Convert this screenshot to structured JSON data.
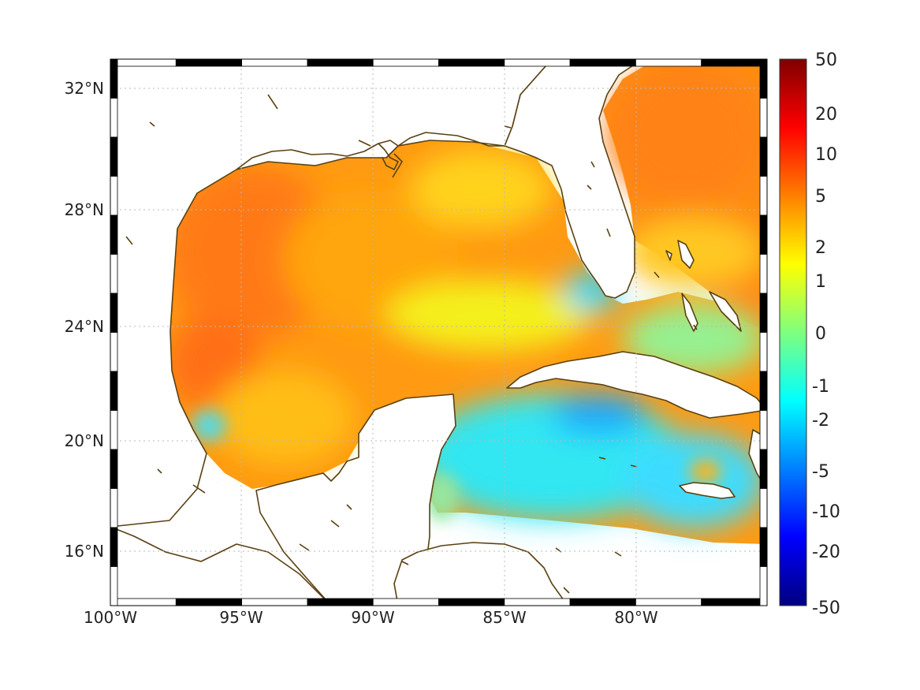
{
  "map": {
    "extent": {
      "lon_min": -100,
      "lon_max": -75,
      "lat_min": 14,
      "lat_max": 33
    },
    "grid": true,
    "x_ticks": [
      {
        "lon": -100,
        "label": "100°W"
      },
      {
        "lon": -95,
        "label": "95°W"
      },
      {
        "lon": -90,
        "label": "90°W"
      },
      {
        "lon": -85,
        "label": "85°W"
      },
      {
        "lon": -80,
        "label": "80°W"
      }
    ],
    "y_ticks": [
      {
        "lat": 32,
        "label": "32°N"
      },
      {
        "lat": 28,
        "label": "28°N"
      },
      {
        "lat": 24,
        "label": "24°N"
      },
      {
        "lat": 20,
        "label": "20°N"
      },
      {
        "lat": 16,
        "label": "16°N"
      }
    ],
    "land_color": "#ffffff",
    "coastline_color": "#5a4010",
    "frame_colors": [
      "#000000",
      "#ffffff"
    ]
  },
  "colorbar": {
    "ticks": [
      "50",
      "20",
      "10",
      "5",
      "2",
      "1",
      "0",
      "-1",
      "-2",
      "-5",
      "-10",
      "-20",
      "-50"
    ],
    "colormap": "jet",
    "stops": [
      "#00007f",
      "#0000ff",
      "#007fff",
      "#00ffff",
      "#7fff7f",
      "#ffff00",
      "#ff7f00",
      "#ff0000",
      "#7f0000"
    ]
  },
  "field_regions": [
    {
      "region": "western-gulf",
      "value": 5,
      "color": "#ff7a14"
    },
    {
      "region": "central-gulf",
      "value": 3,
      "color": "#ffa50a"
    },
    {
      "region": "eastern-gulf-shelf",
      "value": 1.5,
      "color": "#ffd21e"
    },
    {
      "region": "loop-current",
      "value": 1,
      "color": "#f4f01e"
    },
    {
      "region": "campeche-bay",
      "value": 2,
      "color": "#ffbe14"
    },
    {
      "region": "caribbean-sea",
      "value": -1.5,
      "color": "#33e6f2"
    },
    {
      "region": "florida-keys",
      "value": -1.5,
      "color": "#2cd9ff"
    },
    {
      "region": "south-of-cuba",
      "value": -3,
      "color": "#1ea8ff"
    },
    {
      "region": "bahamas",
      "value": 0,
      "color": "#96f090"
    },
    {
      "region": "western-atlantic",
      "value": 4,
      "color": "#ff8c14"
    },
    {
      "region": "atlantic-near-bahamas",
      "value": 2,
      "color": "#ffc822"
    },
    {
      "region": "near-jamaica",
      "value": 2,
      "color": "#ffb414"
    },
    {
      "region": "western-caribbean-shelf",
      "value": 0,
      "color": "#96e6a0"
    }
  ]
}
